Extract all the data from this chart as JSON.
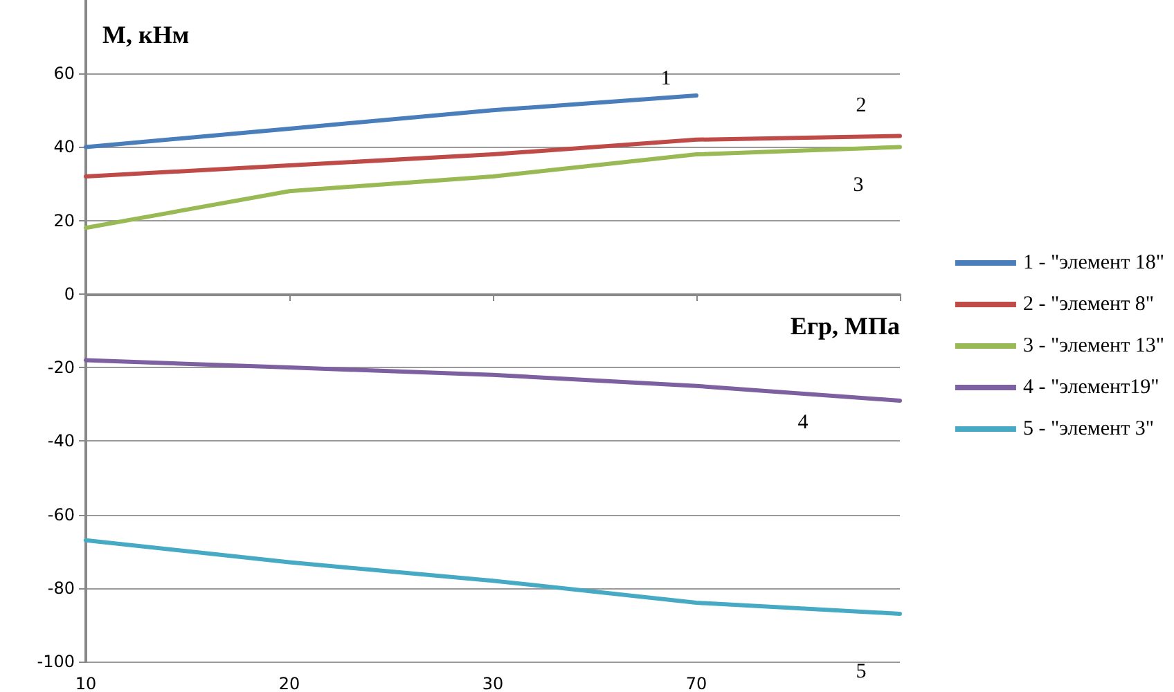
{
  "chart_data": {
    "type": "line",
    "xlabel": "Eгр, МПа",
    "ylabel": "M, кНм",
    "categories": [
      "10",
      "20",
      "30",
      "70",
      null
    ],
    "series": [
      {
        "name": "1 - \"элемент 18\"",
        "color": "#4a7ebb",
        "values": [
          40,
          45,
          50,
          54,
          null
        ]
      },
      {
        "name": "2 - \"элемент 8\"",
        "color": "#be4b48",
        "values": [
          32,
          35,
          38,
          42,
          43
        ]
      },
      {
        "name": "3 - \"элемент 13\"",
        "color": "#98b954",
        "values": [
          18,
          28,
          32,
          38,
          40
        ]
      },
      {
        "name": "4 - \"элемент19\"",
        "color": "#7d60a0",
        "values": [
          -18,
          -20,
          -22,
          -25,
          -29
        ]
      },
      {
        "name": "5 - \"элемент 3\"",
        "color": "#46aac5",
        "values": [
          -67,
          -73,
          -78,
          -84,
          -87
        ]
      }
    ],
    "annotations": [
      "1",
      "2",
      "3",
      "4",
      "5"
    ],
    "ylim": [
      -100,
      80
    ],
    "yticks": [
      -100,
      -80,
      -60,
      -40,
      -20,
      0,
      20,
      40,
      60
    ],
    "grid": "y",
    "legend": "right",
    "marker": "none",
    "line_style": "solid"
  }
}
